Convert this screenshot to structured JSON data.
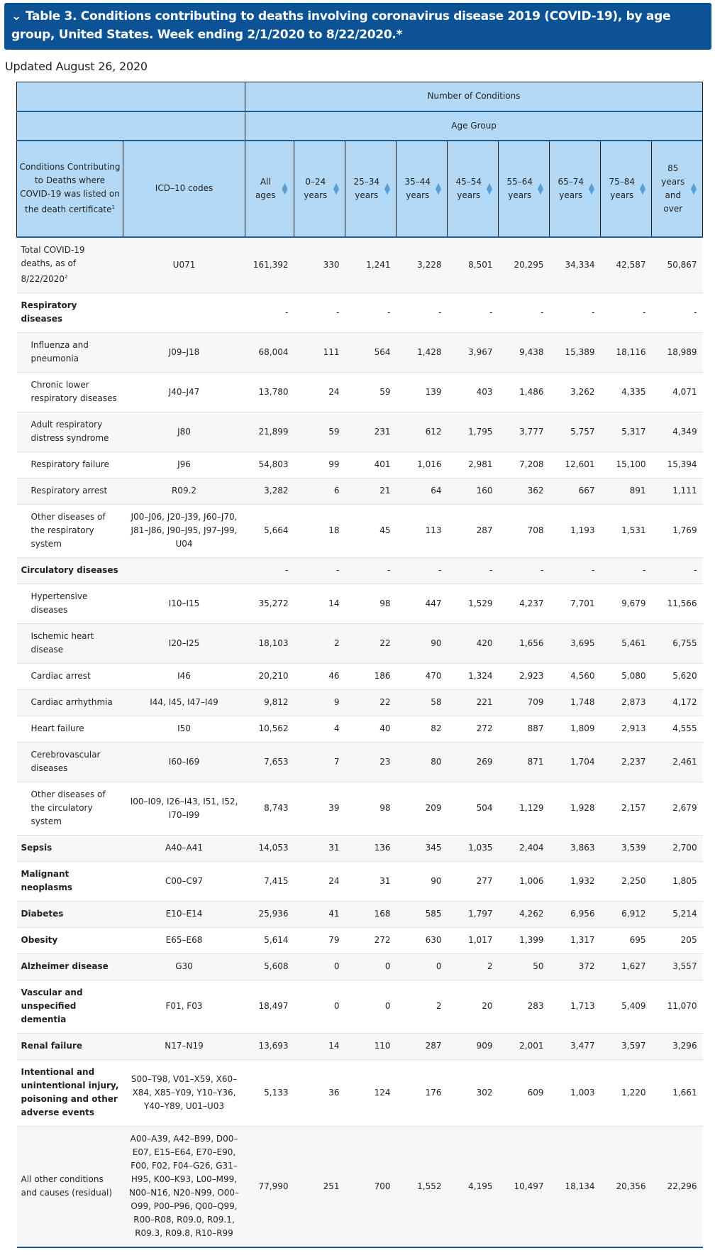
{
  "title": "Table 3. Conditions contributing to deaths involving coronavirus disease 2019 (COVID-19), by age group, United States. Week ending 2/1/2020 to 8/22/2020.*",
  "updated": "Updated August 26, 2020",
  "header": {
    "top": "Number of Conditions",
    "age_group": "Age Group",
    "conditions": "Conditions Contributing to Deaths where COVID-19 was listed on the death certificate",
    "conditions_sup": "1",
    "icd": "ICD–10 codes",
    "ages": [
      "All ages",
      "0–24 years",
      "25–34 years",
      "35–44 years",
      "45–54 years",
      "55–64 years",
      "65–74 years",
      "75–84 years",
      "85 years and over"
    ]
  },
  "rows": [
    {
      "label": "Total COVID-19 deaths, as of 8/22/2020",
      "sup": "2",
      "icd": "U071",
      "type": "plain",
      "values": [
        "161,392",
        "330",
        "1,241",
        "3,228",
        "8,501",
        "20,295",
        "34,334",
        "42,587",
        "50,867"
      ]
    },
    {
      "label": "Respiratory diseases",
      "icd": "",
      "type": "cat",
      "values": [
        "-",
        "-",
        "-",
        "-",
        "-",
        "-",
        "-",
        "-",
        "-"
      ]
    },
    {
      "label": "Influenza and pneumonia",
      "icd": "J09–J18",
      "type": "sub",
      "values": [
        "68,004",
        "111",
        "564",
        "1,428",
        "3,967",
        "9,438",
        "15,389",
        "18,116",
        "18,989"
      ]
    },
    {
      "label": "Chronic lower respiratory diseases",
      "icd": "J40–J47",
      "type": "sub",
      "values": [
        "13,780",
        "24",
        "59",
        "139",
        "403",
        "1,486",
        "3,262",
        "4,335",
        "4,071"
      ]
    },
    {
      "label": "Adult respiratory distress syndrome",
      "icd": "J80",
      "type": "sub",
      "values": [
        "21,899",
        "59",
        "231",
        "612",
        "1,795",
        "3,777",
        "5,757",
        "5,317",
        "4,349"
      ]
    },
    {
      "label": "Respiratory failure",
      "icd": "J96",
      "type": "sub",
      "values": [
        "54,803",
        "99",
        "401",
        "1,016",
        "2,981",
        "7,208",
        "12,601",
        "15,100",
        "15,394"
      ]
    },
    {
      "label": "Respiratory arrest",
      "icd": "R09.2",
      "type": "sub",
      "values": [
        "3,282",
        "6",
        "21",
        "64",
        "160",
        "362",
        "667",
        "891",
        "1,111"
      ]
    },
    {
      "label": "Other diseases of the respiratory system",
      "icd": "J00–J06, J20–J39, J60–J70, J81–J86, J90–J95, J97–J99, U04",
      "type": "sub",
      "values": [
        "5,664",
        "18",
        "45",
        "113",
        "287",
        "708",
        "1,193",
        "1,531",
        "1,769"
      ]
    },
    {
      "label": "Circulatory diseases",
      "icd": "",
      "type": "cat",
      "values": [
        "-",
        "-",
        "-",
        "-",
        "-",
        "-",
        "-",
        "-",
        "-"
      ]
    },
    {
      "label": "Hypertensive diseases",
      "icd": "I10–I15",
      "type": "sub",
      "values": [
        "35,272",
        "14",
        "98",
        "447",
        "1,529",
        "4,237",
        "7,701",
        "9,679",
        "11,566"
      ]
    },
    {
      "label": "Ischemic heart disease",
      "icd": "I20–I25",
      "type": "sub",
      "values": [
        "18,103",
        "2",
        "22",
        "90",
        "420",
        "1,656",
        "3,695",
        "5,461",
        "6,755"
      ]
    },
    {
      "label": "Cardiac arrest",
      "icd": "I46",
      "type": "sub",
      "values": [
        "20,210",
        "46",
        "186",
        "470",
        "1,324",
        "2,923",
        "4,560",
        "5,080",
        "5,620"
      ]
    },
    {
      "label": "Cardiac arrhythmia",
      "icd": "I44, I45, I47–I49",
      "type": "sub",
      "values": [
        "9,812",
        "9",
        "22",
        "58",
        "221",
        "709",
        "1,748",
        "2,873",
        "4,172"
      ]
    },
    {
      "label": "Heart failure",
      "icd": "I50",
      "type": "sub",
      "values": [
        "10,562",
        "4",
        "40",
        "82",
        "272",
        "887",
        "1,809",
        "2,913",
        "4,555"
      ]
    },
    {
      "label": "Cerebrovascular diseases",
      "icd": "I60–I69",
      "type": "sub",
      "values": [
        "7,653",
        "7",
        "23",
        "80",
        "269",
        "871",
        "1,704",
        "2,237",
        "2,461"
      ]
    },
    {
      "label": "Other diseases of the circulatory system",
      "icd": "I00–I09, I26–I43, I51, I52, I70–I99",
      "type": "sub",
      "values": [
        "8,743",
        "39",
        "98",
        "209",
        "504",
        "1,129",
        "1,928",
        "2,157",
        "2,679"
      ]
    },
    {
      "label": "Sepsis",
      "icd": "A40–A41",
      "type": "cat",
      "values": [
        "14,053",
        "31",
        "136",
        "345",
        "1,035",
        "2,404",
        "3,863",
        "3,539",
        "2,700"
      ]
    },
    {
      "label": "Malignant neoplasms",
      "icd": "C00–C97",
      "type": "cat",
      "values": [
        "7,415",
        "24",
        "31",
        "90",
        "277",
        "1,006",
        "1,932",
        "2,250",
        "1,805"
      ]
    },
    {
      "label": "Diabetes",
      "icd": "E10–E14",
      "type": "cat",
      "values": [
        "25,936",
        "41",
        "168",
        "585",
        "1,797",
        "4,262",
        "6,956",
        "6,912",
        "5,214"
      ]
    },
    {
      "label": "Obesity",
      "icd": "E65–E68",
      "type": "cat",
      "values": [
        "5,614",
        "79",
        "272",
        "630",
        "1,017",
        "1,399",
        "1,317",
        "695",
        "205"
      ]
    },
    {
      "label": "Alzheimer disease",
      "icd": "G30",
      "type": "cat",
      "values": [
        "5,608",
        "0",
        "0",
        "0",
        "2",
        "50",
        "372",
        "1,627",
        "3,557"
      ]
    },
    {
      "label": "Vascular and unspecified dementia",
      "icd": "F01, F03",
      "type": "cat",
      "values": [
        "18,497",
        "0",
        "0",
        "2",
        "20",
        "283",
        "1,713",
        "5,409",
        "11,070"
      ]
    },
    {
      "label": "Renal failure",
      "icd": "N17–N19",
      "type": "cat",
      "values": [
        "13,693",
        "14",
        "110",
        "287",
        "909",
        "2,001",
        "3,477",
        "3,597",
        "3,296"
      ]
    },
    {
      "label": "Intentional and unintentional injury, poisoning and other adverse events",
      "icd": "S00–T98, V01–X59, X60–X84, X85–Y09, Y10–Y36, Y40–Y89, U01–U03",
      "type": "cat",
      "values": [
        "5,133",
        "36",
        "124",
        "176",
        "302",
        "609",
        "1,003",
        "1,220",
        "1,661"
      ]
    },
    {
      "label": "All other conditions and causes (residual)",
      "icd": "A00–A39, A42–B99, D00–E07, E15–E64, E70–E90, F00, F02, F04–G26, G31–H95, K00–K93, L00–M99, N00–N16, N20–N99, O00–O99, P00–P96, Q00–Q99, R00–R08, R09.0, R09.1, R09.3, R09.8, R10–R99",
      "type": "plain",
      "values": [
        "77,990",
        "251",
        "700",
        "1,552",
        "4,195",
        "10,497",
        "18,134",
        "20,356",
        "22,296"
      ]
    }
  ]
}
